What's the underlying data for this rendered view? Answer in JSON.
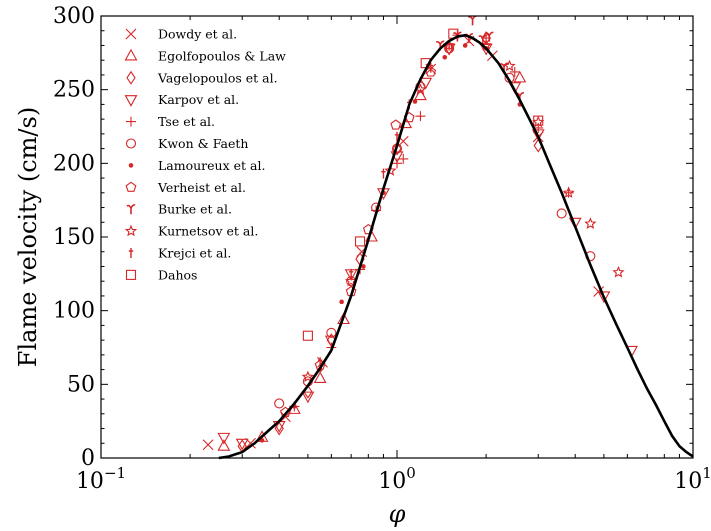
{
  "chart_data": {
    "type": "scatter",
    "title": "",
    "xlabel": "φ",
    "ylabel": "Flame velocity (cm/s)",
    "xscale": "log",
    "xlim": [
      0.1,
      10
    ],
    "ylim": [
      0,
      300
    ],
    "grid": false,
    "legend_position": "top-left",
    "marker_color": "#d62728",
    "curve_color": "#000000",
    "x_ticks": [
      {
        "value": 0.1,
        "base": "10",
        "exp": "−1"
      },
      {
        "value": 1,
        "base": "10",
        "exp": "0"
      },
      {
        "value": 10,
        "base": "10",
        "exp": "1"
      }
    ],
    "x_minor_ticks": [
      0.2,
      0.3,
      0.4,
      0.5,
      0.6,
      0.7,
      0.8,
      0.9,
      2,
      3,
      4,
      5,
      6,
      7,
      8,
      9
    ],
    "y_ticks": [
      {
        "value": 0,
        "label": "0"
      },
      {
        "value": 50,
        "label": "50"
      },
      {
        "value": 100,
        "label": "100"
      },
      {
        "value": 150,
        "label": "150"
      },
      {
        "value": 200,
        "label": "200"
      },
      {
        "value": 250,
        "label": "250"
      },
      {
        "value": 300,
        "label": "300"
      }
    ],
    "fit_curve": {
      "x": [
        0.25,
        0.27,
        0.3,
        0.33,
        0.37,
        0.4,
        0.45,
        0.5,
        0.55,
        0.6,
        0.7,
        0.8,
        0.9,
        1.0,
        1.1,
        1.2,
        1.3,
        1.4,
        1.5,
        1.6,
        1.7,
        1.8,
        1.9,
        2.0,
        2.2,
        2.4,
        2.6,
        2.8,
        3.0,
        3.3,
        3.6,
        4.0,
        4.5,
        5.0,
        5.5,
        6.0,
        6.5,
        7.0,
        7.5,
        8.0,
        8.5,
        9.0,
        9.5,
        10.0
      ],
      "y": [
        0,
        1,
        4,
        10,
        19,
        25,
        37,
        49,
        61,
        73,
        110,
        148,
        183,
        212,
        240,
        257,
        270,
        278,
        283,
        286,
        287,
        285,
        282,
        278,
        268,
        256,
        243,
        230,
        218,
        198,
        180,
        157,
        131,
        109,
        91,
        75,
        60,
        47,
        36,
        25,
        15,
        8,
        4,
        1
      ]
    },
    "series": [
      {
        "name": "Dowdy et al.",
        "marker": "x",
        "x": [
          0.23,
          0.32,
          0.42,
          0.56,
          0.76,
          1.05,
          1.3,
          1.75,
          2.1,
          3.0,
          4.8
        ],
        "y": [
          9,
          10,
          28,
          65,
          140,
          215,
          264,
          283,
          273,
          218,
          113
        ]
      },
      {
        "name": "Egolfopoulos & Law",
        "marker": "triangle-up",
        "x": [
          0.26,
          0.35,
          0.45,
          0.55,
          0.66,
          0.82,
          1.07,
          1.2,
          2.6
        ],
        "y": [
          8,
          14,
          33,
          54,
          94,
          150,
          227,
          246,
          258
        ]
      },
      {
        "name": "Vagelopoulos et al.",
        "marker": "diamond",
        "x": [
          0.3,
          0.4,
          0.5,
          0.6,
          0.75,
          1.0,
          1.5,
          2.0,
          3.0
        ],
        "y": [
          8,
          20,
          45,
          80,
          135,
          210,
          278,
          285,
          212
        ]
      },
      {
        "name": "Karpov et al.",
        "marker": "triangle-down",
        "x": [
          0.26,
          0.3,
          0.4,
          0.5,
          0.6,
          0.7,
          0.9,
          1.0,
          1.25,
          1.5,
          2.0,
          2.5,
          3.0,
          4.0,
          5.0,
          6.2
        ],
        "y": [
          14,
          10,
          22,
          42,
          80,
          125,
          180,
          205,
          255,
          278,
          278,
          252,
          220,
          160,
          110,
          73
        ]
      },
      {
        "name": "Tse et al.",
        "marker": "plus",
        "x": [
          0.45,
          0.6,
          0.75,
          0.85,
          1.0,
          1.05,
          1.2,
          1.6,
          2.0,
          2.5,
          3.0,
          3.8
        ],
        "y": [
          35,
          75,
          128,
          168,
          200,
          203,
          232,
          287,
          285,
          262,
          224,
          180
        ]
      },
      {
        "name": "Kwon & Faeth",
        "marker": "circle",
        "x": [
          0.4,
          0.5,
          0.6,
          0.7,
          0.85,
          1.0,
          1.2,
          1.5,
          2.4,
          3.6,
          4.5
        ],
        "y": [
          37,
          52,
          85,
          120,
          170,
          210,
          252,
          278,
          258,
          166,
          137
        ]
      },
      {
        "name": "Lamoureux et al.",
        "marker": "dot",
        "x": [
          0.35,
          0.45,
          0.55,
          0.65,
          0.77,
          0.9,
          1.15,
          1.45,
          1.7,
          2.0,
          2.6
        ],
        "y": [
          12,
          35,
          60,
          106,
          130,
          180,
          242,
          272,
          280,
          278,
          240
        ]
      },
      {
        "name": "Verheist et al.",
        "marker": "pentagon",
        "x": [
          0.42,
          0.55,
          0.7,
          0.8,
          0.99,
          1.1,
          1.3
        ],
        "y": [
          31,
          63,
          113,
          155,
          226,
          231,
          262
        ]
      },
      {
        "name": "Burke et al.",
        "marker": "gamma",
        "x": [
          1.4,
          1.6,
          1.75,
          1.8,
          1.95,
          2.05,
          2.3,
          2.6
        ],
        "y": [
          280,
          286,
          285,
          297,
          284,
          286,
          265,
          245
        ]
      },
      {
        "name": "Kurnetsov et al.",
        "marker": "star",
        "x": [
          0.5,
          0.7,
          0.95,
          1.2,
          1.5,
          2.0,
          2.4,
          3.0,
          3.8,
          4.5,
          5.6
        ],
        "y": [
          55,
          120,
          195,
          250,
          280,
          280,
          266,
          228,
          180,
          159,
          126
        ]
      },
      {
        "name": "Krejci et al.",
        "marker": "dagger",
        "x": [
          0.55,
          0.7,
          0.9,
          1.0,
          1.1,
          1.3,
          1.5
        ],
        "y": [
          65,
          125,
          193,
          218,
          240,
          265,
          280
        ]
      },
      {
        "name": "Dahos",
        "marker": "square",
        "x": [
          0.5,
          0.75,
          1.25,
          1.55,
          3.0
        ],
        "y": [
          83,
          147,
          268,
          288,
          229
        ]
      }
    ]
  }
}
